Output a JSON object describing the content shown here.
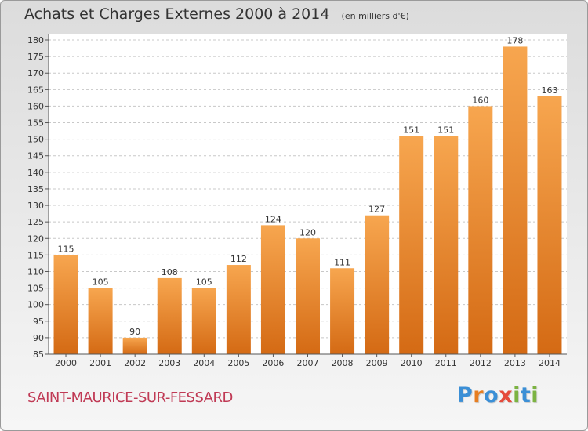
{
  "header": {
    "title": "Achats et Charges Externes 2000 à 2014",
    "subtitle": "(en milliers d'€)"
  },
  "footer": {
    "commune": "SAINT-MAURICE-SUR-FESSARD",
    "logo_text": "Proxiti"
  },
  "colors": {
    "bar_light": "#f7a64f",
    "bar_dark": "#d46a14",
    "commune_text": "#c03a55",
    "logo_letters": [
      "#3b8fd6",
      "#e67e22",
      "#3b8fd6",
      "#e54b3c",
      "#7cb342",
      "#3b8fd6",
      "#7cb342"
    ]
  },
  "chart_data": {
    "type": "bar",
    "title": "Achats et Charges Externes 2000 à 2014",
    "subtitle": "(en milliers d'€)",
    "categories": [
      "2000",
      "2001",
      "2002",
      "2003",
      "2004",
      "2005",
      "2006",
      "2007",
      "2008",
      "2009",
      "2010",
      "2011",
      "2012",
      "2013",
      "2014"
    ],
    "values": [
      115,
      105,
      90,
      108,
      105,
      112,
      124,
      120,
      111,
      127,
      151,
      151,
      160,
      178,
      163
    ],
    "ylim": [
      85,
      180
    ],
    "ytick_step": 5,
    "grid": "horizontal dashed",
    "data_labels": true,
    "legend": "none"
  }
}
